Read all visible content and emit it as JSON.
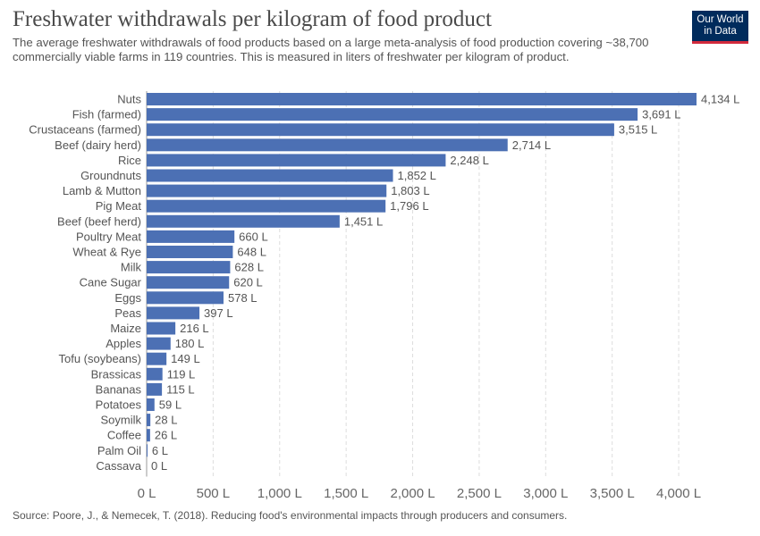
{
  "title": "Freshwater withdrawals per kilogram of food product",
  "subtitle": "The average freshwater withdrawals of food products based on a large meta-analysis of food production covering ~38,700 commercially viable farms in 119 countries. This is measured in liters of freshwater per kilogram of product.",
  "logo": {
    "line1": "Our World",
    "line2": "in Data"
  },
  "source": "Source: Poore, J., & Nemecek, T. (2018). Reducing food's environmental impacts through producers and consumers.",
  "colors": {
    "bar": "#4c70b4",
    "grid": "#dddddd",
    "text": "#555555",
    "logo_bg": "#002b5c",
    "logo_accent": "#d22a3c"
  },
  "chart_data": {
    "type": "bar",
    "orientation": "horizontal",
    "categories": [
      "Nuts",
      "Fish (farmed)",
      "Crustaceans (farmed)",
      "Beef (dairy herd)",
      "Rice",
      "Groundnuts",
      "Lamb & Mutton",
      "Pig Meat",
      "Beef (beef herd)",
      "Poultry Meat",
      "Wheat & Rye",
      "Milk",
      "Cane Sugar",
      "Eggs",
      "Peas",
      "Maize",
      "Apples",
      "Tofu (soybeans)",
      "Brassicas",
      "Bananas",
      "Potatoes",
      "Soymilk",
      "Coffee",
      "Palm Oil",
      "Cassava"
    ],
    "values": [
      4134,
      3691,
      3515,
      2714,
      2248,
      1852,
      1803,
      1796,
      1451,
      660,
      648,
      628,
      620,
      578,
      397,
      216,
      180,
      149,
      119,
      115,
      59,
      28,
      26,
      6,
      0
    ],
    "value_labels": [
      "4,134 L",
      "3,691 L",
      "3,515 L",
      "2,714 L",
      "2,248 L",
      "1,852 L",
      "1,803 L",
      "1,796 L",
      "1,451 L",
      "660 L",
      "648 L",
      "628 L",
      "620 L",
      "578 L",
      "397 L",
      "216 L",
      "180 L",
      "149 L",
      "119 L",
      "115 L",
      "59 L",
      "28 L",
      "26 L",
      "6 L",
      "0 L"
    ],
    "xticks": [
      0,
      500,
      1000,
      1500,
      2000,
      2500,
      3000,
      3500,
      4000
    ],
    "xtick_labels": [
      "0 L",
      "500 L",
      "1,000 L",
      "1,500 L",
      "2,000 L",
      "2,500 L",
      "3,000 L",
      "3,500 L",
      "4,000 L"
    ],
    "xlim": [
      0,
      4134
    ],
    "grid": true,
    "legend": "none"
  }
}
